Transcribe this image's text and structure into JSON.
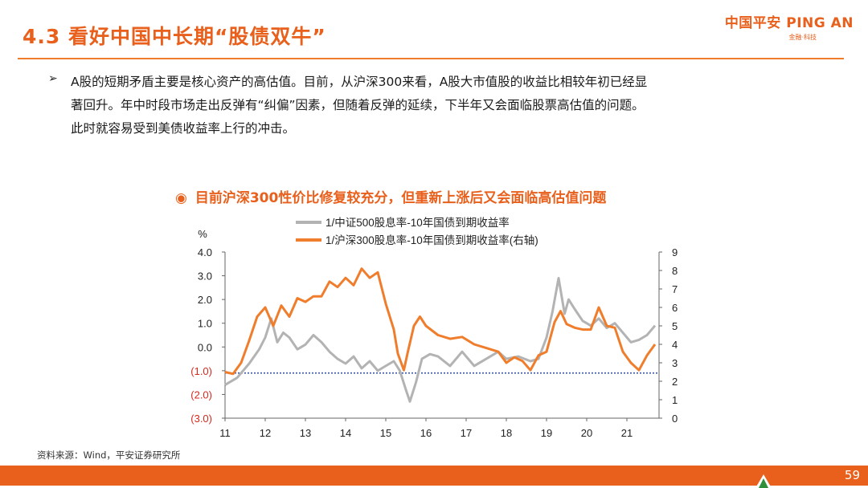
{
  "slide": {
    "title": "4.3 看好中国中长期“股债双牛”",
    "logo": "中国平安 PING AN",
    "logo_tagline": "金融·科技",
    "bullet_lines": [
      "A股的短期矛盾主要是核心资产的高估值。目前，从沪深300来看，A股大市值股的收益比相较年初已经显",
      "著回升。年中时段市场走出反弹有“纠偏”因素，但随着反弹的延续，下半年又会面临股票高估值的问题。",
      "此时就容易受到美债收益率上行的冲击。"
    ],
    "chart_caption": "目前沪深300性价比修复较充分，但重新上涨后又会面临高估值问题",
    "source": "资料来源：Wind，平安证券研究所",
    "page_number": "59",
    "colors": {
      "accent": "#e8601c",
      "series_gray": "#b3b3b3",
      "series_orange": "#ef7d2c",
      "reference_line": "#1f3f99"
    }
  },
  "chart_data": {
    "type": "line",
    "title": "目前沪深300性价比修复较充分，但重新上涨后又会面临高估值问题",
    "ylabel": "%",
    "x_ticks": [
      "11",
      "12",
      "13",
      "14",
      "15",
      "16",
      "17",
      "18",
      "19",
      "20",
      "21"
    ],
    "xlim": [
      2011.0,
      2021.8
    ],
    "left_axis": {
      "ylim": [
        -3.0,
        4.0
      ],
      "ticks": [
        "4.0",
        "3.0",
        "2.0",
        "1.0",
        "0.0",
        "(1.0)",
        "(2.0)",
        "(3.0)"
      ],
      "tick_values": [
        4,
        3,
        2,
        1,
        0,
        -1,
        -2,
        -3
      ]
    },
    "right_axis": {
      "ylim": [
        0,
        9
      ],
      "ticks": [
        "9",
        "8",
        "7",
        "6",
        "5",
        "4",
        "3",
        "2",
        "1",
        "0"
      ],
      "tick_values": [
        9,
        8,
        7,
        6,
        5,
        4,
        3,
        2,
        1,
        0
      ]
    },
    "reference_line": {
      "axis": "left",
      "value": -1.1,
      "style": "dotted"
    },
    "legend_position": "top",
    "series": [
      {
        "name": "1/中证500股息率-10年国债到期收益率",
        "axis": "left",
        "color": "#b3b3b3",
        "x": [
          2011.0,
          2011.3,
          2011.6,
          2011.85,
          2012.0,
          2012.15,
          2012.3,
          2012.45,
          2012.6,
          2012.8,
          2013.0,
          2013.2,
          2013.4,
          2013.6,
          2013.8,
          2014.0,
          2014.2,
          2014.4,
          2014.6,
          2014.8,
          2015.0,
          2015.2,
          2015.35,
          2015.5,
          2015.6,
          2015.75,
          2015.9,
          2016.1,
          2016.3,
          2016.6,
          2016.9,
          2017.2,
          2017.5,
          2017.8,
          2018.0,
          2018.3,
          2018.6,
          2018.8,
          2019.0,
          2019.15,
          2019.3,
          2019.45,
          2019.55,
          2019.7,
          2019.9,
          2020.1,
          2020.3,
          2020.5,
          2020.7,
          2020.9,
          2021.1,
          2021.3,
          2021.5,
          2021.7
        ],
        "values": [
          -1.6,
          -1.3,
          -0.7,
          -0.1,
          0.4,
          1.2,
          0.2,
          0.6,
          0.4,
          -0.1,
          0.1,
          0.5,
          0.2,
          -0.2,
          -0.5,
          -0.7,
          -0.4,
          -0.9,
          -0.6,
          -1.0,
          -0.8,
          -0.6,
          -1.0,
          -1.8,
          -2.3,
          -1.5,
          -0.5,
          -0.3,
          -0.4,
          -0.8,
          -0.2,
          -0.8,
          -0.5,
          -0.2,
          -0.5,
          -0.4,
          -0.6,
          -0.5,
          0.4,
          1.5,
          2.9,
          1.4,
          2.0,
          1.6,
          1.1,
          0.9,
          1.2,
          0.8,
          1.0,
          0.6,
          0.2,
          0.3,
          0.5,
          0.9
        ]
      },
      {
        "name": "1/沪深300股息率-10年国债到期收益率(右轴)",
        "axis": "right",
        "color": "#ef7d2c",
        "x": [
          2011.0,
          2011.2,
          2011.4,
          2011.6,
          2011.8,
          2012.0,
          2012.2,
          2012.4,
          2012.6,
          2012.8,
          2013.0,
          2013.2,
          2013.4,
          2013.6,
          2013.8,
          2014.0,
          2014.2,
          2014.4,
          2014.6,
          2014.8,
          2015.0,
          2015.2,
          2015.3,
          2015.45,
          2015.55,
          2015.7,
          2015.85,
          2016.0,
          2016.3,
          2016.6,
          2016.9,
          2017.2,
          2017.5,
          2017.8,
          2018.0,
          2018.2,
          2018.4,
          2018.6,
          2018.8,
          2019.0,
          2019.2,
          2019.35,
          2019.5,
          2019.7,
          2019.9,
          2020.1,
          2020.3,
          2020.5,
          2020.7,
          2020.9,
          2021.1,
          2021.3,
          2021.5,
          2021.7
        ],
        "values": [
          2.5,
          2.4,
          3.0,
          4.2,
          5.5,
          6.0,
          5.0,
          6.1,
          5.5,
          6.5,
          6.3,
          6.6,
          6.6,
          7.4,
          7.1,
          7.6,
          7.2,
          8.1,
          7.6,
          7.9,
          6.2,
          4.8,
          3.5,
          2.6,
          3.6,
          5.0,
          5.5,
          5.0,
          4.5,
          4.3,
          4.4,
          4.0,
          3.8,
          3.6,
          3.0,
          3.3,
          3.1,
          2.6,
          3.4,
          3.6,
          5.2,
          5.8,
          5.1,
          4.9,
          4.8,
          4.8,
          6.0,
          5.0,
          4.9,
          3.6,
          3.0,
          2.6,
          3.4,
          4.0
        ]
      }
    ]
  }
}
